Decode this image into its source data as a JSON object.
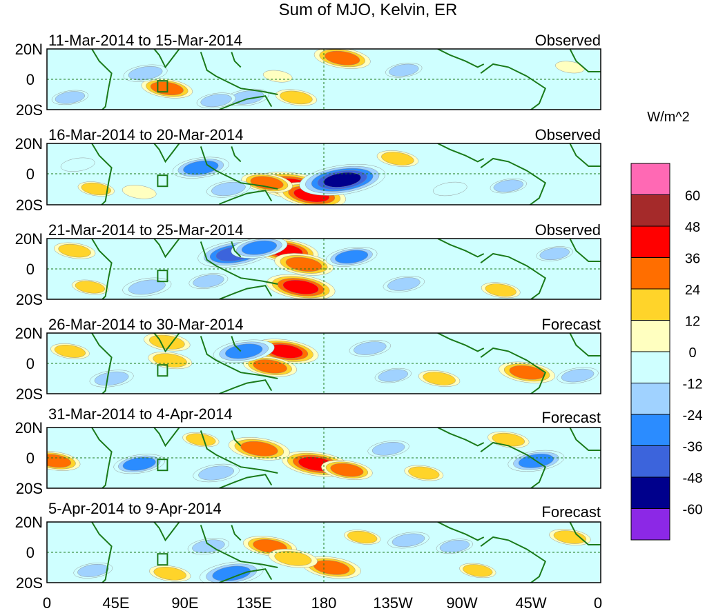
{
  "chart_data": {
    "type": "heatmap",
    "title": "Sum of MJO, Kelvin, ER",
    "colorbar": {
      "unit_label": "W/m^2",
      "levels": [
        "60",
        "48",
        "36",
        "24",
        "12",
        "0",
        "-12",
        "-24",
        "-36",
        "-48",
        "-60"
      ],
      "colors": [
        "#ff69b4",
        "#a52a2a",
        "#ff0000",
        "#ff6e00",
        "#ffd42a",
        "#ffffc0",
        "#cfffff",
        "#a0d2ff",
        "#2b8cff",
        "#3c64dc",
        "#00008c",
        "#8c28e6"
      ]
    },
    "x_ticks": [
      "0",
      "45E",
      "90E",
      "135E",
      "180",
      "135W",
      "90W",
      "45W",
      "0"
    ],
    "y_ticks": [
      "20N",
      "0",
      "20S"
    ],
    "panels": [
      {
        "period": "11-Mar-2014 to 15-Mar-2014",
        "status": "Observed",
        "anomalies": [
          {
            "lon": 192,
            "lat": 14,
            "value": 30
          },
          {
            "lon": 78,
            "lat": -6,
            "value": 26
          },
          {
            "lon": 64,
            "lat": 4,
            "value": -20
          },
          {
            "lon": 130,
            "lat": -12,
            "value": -20
          },
          {
            "lon": 162,
            "lat": -12,
            "value": 18
          },
          {
            "lon": 110,
            "lat": -14,
            "value": -16
          },
          {
            "lon": 232,
            "lat": 6,
            "value": -14
          },
          {
            "lon": 15,
            "lat": -12,
            "value": -14
          },
          {
            "lon": 150,
            "lat": 2,
            "value": 8
          },
          {
            "lon": 340,
            "lat": 8,
            "value": 8
          }
        ]
      },
      {
        "period": "16-Mar-2014 to 20-Mar-2014",
        "status": "Observed",
        "anomalies": [
          {
            "lon": 160,
            "lat": -8,
            "value": 46
          },
          {
            "lon": 172,
            "lat": -14,
            "value": 40
          },
          {
            "lon": 143,
            "lat": -6,
            "value": 26
          },
          {
            "lon": 192,
            "lat": -4,
            "value": -54
          },
          {
            "lon": 100,
            "lat": 4,
            "value": -30
          },
          {
            "lon": 118,
            "lat": -10,
            "value": -20
          },
          {
            "lon": 228,
            "lat": 10,
            "value": 18
          },
          {
            "lon": 32,
            "lat": -10,
            "value": 14
          },
          {
            "lon": 60,
            "lat": -12,
            "value": 12
          },
          {
            "lon": 300,
            "lat": -8,
            "value": -14
          },
          {
            "lon": 262,
            "lat": -10,
            "value": -12
          },
          {
            "lon": 20,
            "lat": 6,
            "value": -12
          }
        ]
      },
      {
        "period": "21-Mar-2014 to 25-Mar-2014",
        "status": "Observed",
        "anomalies": [
          {
            "lon": 155,
            "lat": 12,
            "value": 38
          },
          {
            "lon": 167,
            "lat": 3,
            "value": 32
          },
          {
            "lon": 165,
            "lat": -12,
            "value": 40
          },
          {
            "lon": 122,
            "lat": 10,
            "value": -44
          },
          {
            "lon": 138,
            "lat": 14,
            "value": -30
          },
          {
            "lon": 198,
            "lat": 8,
            "value": -26
          },
          {
            "lon": 65,
            "lat": -12,
            "value": -24
          },
          {
            "lon": 105,
            "lat": -8,
            "value": -16
          },
          {
            "lon": 18,
            "lat": 12,
            "value": 18
          },
          {
            "lon": 28,
            "lat": -12,
            "value": 14
          },
          {
            "lon": 232,
            "lat": -10,
            "value": -18
          },
          {
            "lon": 295,
            "lat": -14,
            "value": 16
          },
          {
            "lon": 330,
            "lat": 10,
            "value": -14
          }
        ]
      },
      {
        "period": "26-Mar-2014 to 30-Mar-2014",
        "status": "Forecast",
        "anomalies": [
          {
            "lon": 155,
            "lat": 8,
            "value": 38
          },
          {
            "lon": 145,
            "lat": -2,
            "value": 28
          },
          {
            "lon": 128,
            "lat": 8,
            "value": -34
          },
          {
            "lon": 78,
            "lat": 14,
            "value": 22
          },
          {
            "lon": 80,
            "lat": 2,
            "value": 20
          },
          {
            "lon": 312,
            "lat": -6,
            "value": 30
          },
          {
            "lon": 42,
            "lat": -10,
            "value": -20
          },
          {
            "lon": 210,
            "lat": 10,
            "value": -18
          },
          {
            "lon": 255,
            "lat": -10,
            "value": 18
          },
          {
            "lon": 225,
            "lat": -8,
            "value": -14
          },
          {
            "lon": 345,
            "lat": -8,
            "value": -18
          },
          {
            "lon": 15,
            "lat": 8,
            "value": 16
          }
        ]
      },
      {
        "period": "31-Mar-2014 to 4-Apr-2014",
        "status": "Forecast",
        "anomalies": [
          {
            "lon": 175,
            "lat": -4,
            "value": 40
          },
          {
            "lon": 138,
            "lat": 6,
            "value": 34
          },
          {
            "lon": 195,
            "lat": -8,
            "value": 26
          },
          {
            "lon": 5,
            "lat": -2,
            "value": 26
          },
          {
            "lon": 60,
            "lat": -4,
            "value": -26
          },
          {
            "lon": 318,
            "lat": -2,
            "value": -30
          },
          {
            "lon": 110,
            "lat": -10,
            "value": -22
          },
          {
            "lon": 222,
            "lat": 6,
            "value": -18
          },
          {
            "lon": 300,
            "lat": 12,
            "value": 18
          },
          {
            "lon": 245,
            "lat": -10,
            "value": 16
          },
          {
            "lon": 100,
            "lat": 12,
            "value": 14
          }
        ]
      },
      {
        "period": "5-Apr-2014 to 9-Apr-2014",
        "status": "Forecast",
        "anomalies": [
          {
            "lon": 185,
            "lat": -10,
            "value": 32
          },
          {
            "lon": 145,
            "lat": 4,
            "value": 28
          },
          {
            "lon": 160,
            "lat": -4,
            "value": 24
          },
          {
            "lon": 120,
            "lat": -14,
            "value": -36
          },
          {
            "lon": 105,
            "lat": 4,
            "value": -18
          },
          {
            "lon": 80,
            "lat": -14,
            "value": 18
          },
          {
            "lon": 205,
            "lat": 10,
            "value": 14
          },
          {
            "lon": 235,
            "lat": 8,
            "value": -18
          },
          {
            "lon": 30,
            "lat": -12,
            "value": -16
          },
          {
            "lon": 340,
            "lat": 10,
            "value": 18
          },
          {
            "lon": 280,
            "lat": -12,
            "value": 14
          },
          {
            "lon": 265,
            "lat": 4,
            "value": -14
          }
        ]
      }
    ]
  }
}
